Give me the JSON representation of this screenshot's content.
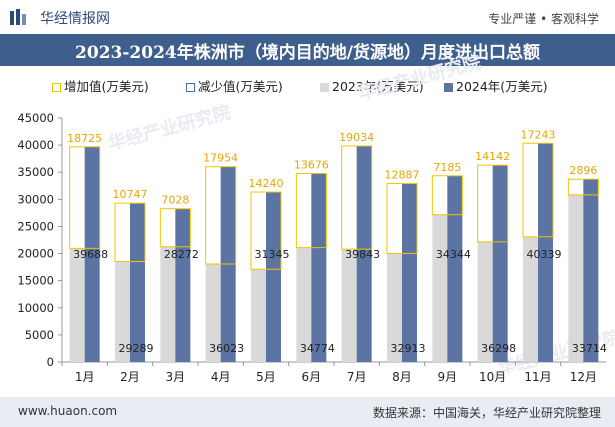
{
  "header": {
    "site_name": "华经情报网",
    "slogan": "专业严谨 • 客观科学",
    "title": "2023-2024年株洲市（境内目的地/货源地）月度进出口总额"
  },
  "legend": {
    "increase": "增加值(万美元)",
    "decrease": "减少值(万美元)",
    "y2023": "2023年(万美元)",
    "y2024": "2024年(万美元)"
  },
  "footer": {
    "url": "www.huaon.com",
    "source": "数据来源：中国海关，华经产业研究院整理"
  },
  "watermark": "华经产业研究院",
  "colors": {
    "title_bg": "#3e5e8e",
    "bar_2023": "#d9d9d9",
    "bar_2024": "#5b74a3",
    "increase": "#f2c400",
    "decrease": "#4a6fa5",
    "footer_bg": "#e9ecf2"
  },
  "chart_data": {
    "type": "bar",
    "categories": [
      "1月",
      "2月",
      "3月",
      "4月",
      "5月",
      "6月",
      "7月",
      "8月",
      "9月",
      "10月",
      "11月",
      "12月"
    ],
    "ylim": [
      0,
      45000
    ],
    "yticks": [
      0,
      5000,
      10000,
      15000,
      20000,
      25000,
      30000,
      35000,
      40000,
      45000
    ],
    "series": [
      {
        "name": "2023年(万美元)",
        "values": [
          20963,
          18542,
          21244,
          18069,
          17105,
          21098,
          20809,
          20026,
          27159,
          22156,
          23096,
          30818
        ]
      },
      {
        "name": "2024年(万美元)",
        "values": [
          39688,
          29289,
          28272,
          36023,
          31345,
          34774,
          39843,
          32913,
          34344,
          36298,
          40339,
          33714
        ]
      },
      {
        "name": "增加值(万美元)",
        "values": [
          18725,
          10747,
          7028,
          17954,
          14240,
          13676,
          19034,
          12887,
          7185,
          14142,
          17243,
          2896
        ]
      }
    ],
    "label_2024": [
      39688,
      29289,
      28272,
      36023,
      31345,
      34774,
      39843,
      32913,
      34344,
      36298,
      40339,
      33714
    ],
    "label_increase": [
      18725,
      10747,
      7028,
      17954,
      14240,
      13676,
      19034,
      12887,
      7185,
      14142,
      17243,
      2896
    ]
  }
}
